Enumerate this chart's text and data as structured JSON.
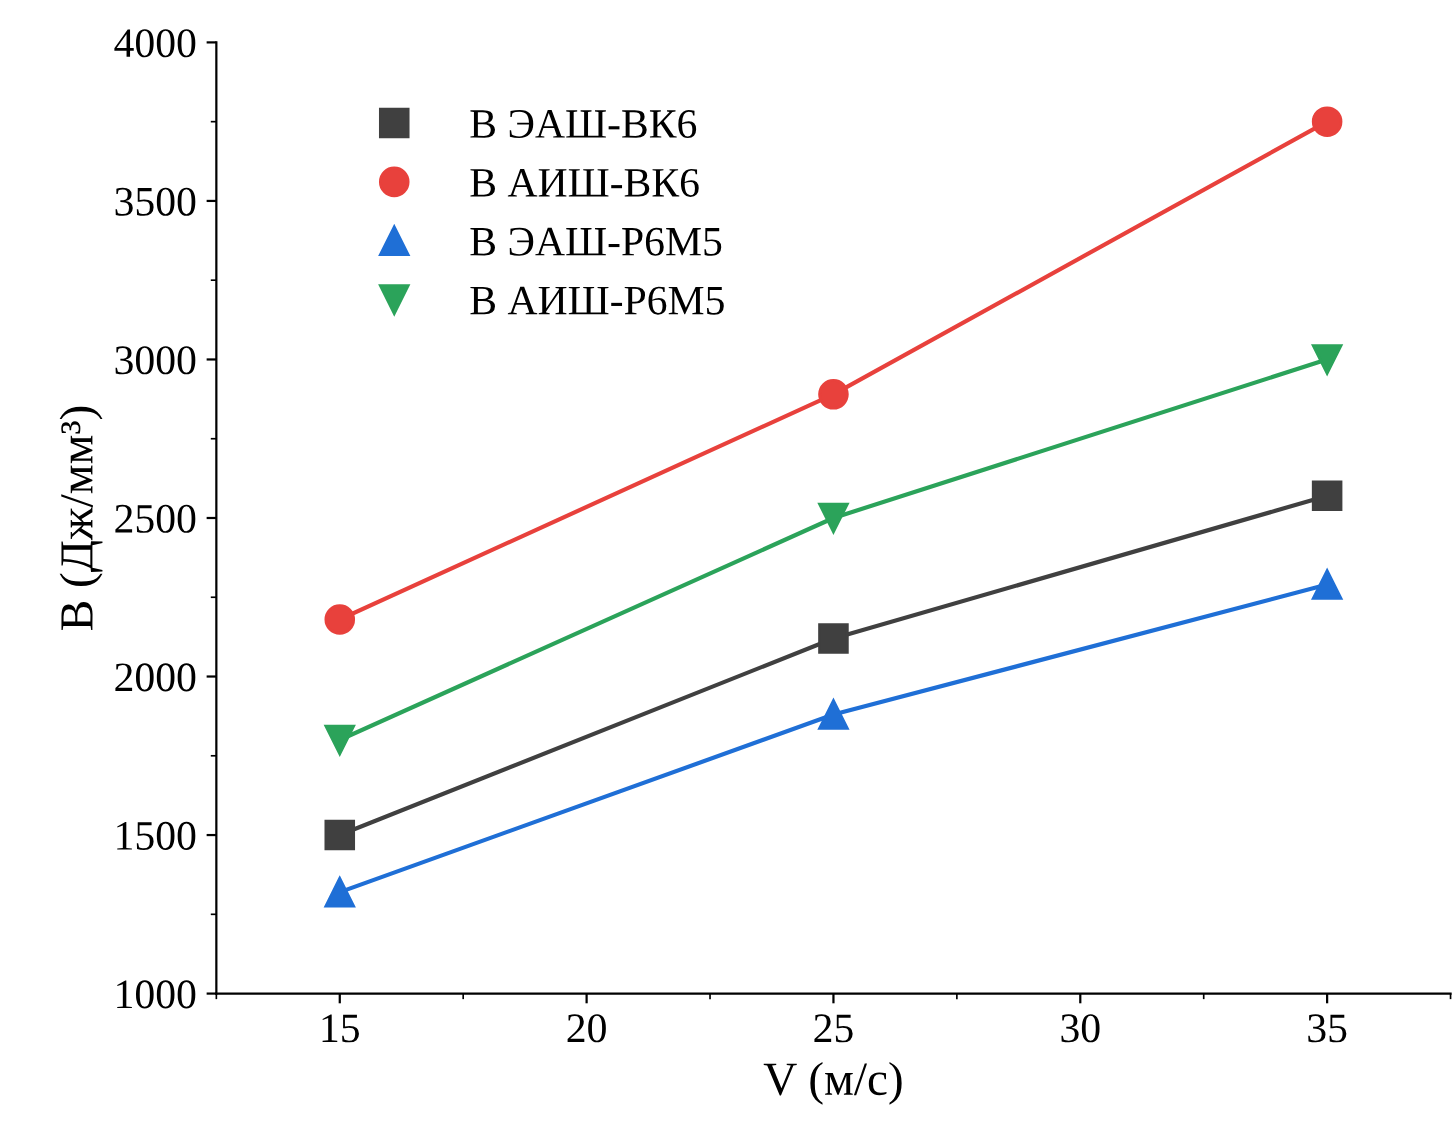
{
  "chart_data": {
    "type": "line",
    "xlabel": "V (м/с)",
    "ylabel": "B (Дж/мм³)",
    "x": [
      15,
      25,
      35
    ],
    "series": [
      {
        "name": "B ЭАШ-ВК6",
        "color": "#404040",
        "marker": "square",
        "values": [
          1500,
          2120,
          2570
        ]
      },
      {
        "name": "B АИШ-ВК6",
        "color": "#e8413c",
        "marker": "circle",
        "values": [
          2180,
          2890,
          3750
        ]
      },
      {
        "name": "B ЭАШ-Р6М5",
        "color": "#1f6fd6",
        "marker": "triangle",
        "values": [
          1320,
          1880,
          2290
        ]
      },
      {
        "name": "B АИШ-Р6М5",
        "color": "#2ba35a",
        "marker": "triangle_down",
        "values": [
          1800,
          2500,
          3000
        ]
      }
    ],
    "xlim": [
      12.5,
      37.5
    ],
    "xticks": [
      15,
      20,
      25,
      30,
      35
    ],
    "ylim": [
      1000,
      4000
    ],
    "yticks": [
      1000,
      1500,
      2000,
      2500,
      3000,
      3500,
      4000
    ],
    "grid": false,
    "legend": "top left",
    "line_style": "solid"
  }
}
